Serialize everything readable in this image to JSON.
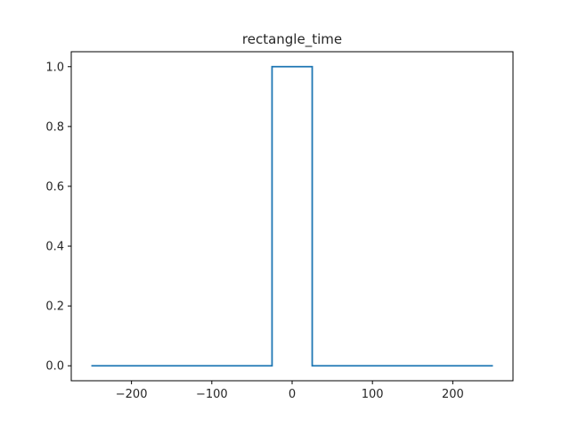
{
  "chart_data": {
    "type": "line",
    "title": "rectangle_time",
    "xlabel": "",
    "ylabel": "",
    "xlim": [
      -275,
      275
    ],
    "ylim": [
      -0.05,
      1.05
    ],
    "x_ticks": [
      {
        "value": -200,
        "label": "−200"
      },
      {
        "value": -100,
        "label": "−100"
      },
      {
        "value": 0,
        "label": "0"
      },
      {
        "value": 100,
        "label": "100"
      },
      {
        "value": 200,
        "label": "200"
      }
    ],
    "y_ticks": [
      {
        "value": 0.0,
        "label": "0.0"
      },
      {
        "value": 0.2,
        "label": "0.2"
      },
      {
        "value": 0.4,
        "label": "0.4"
      },
      {
        "value": 0.6,
        "label": "0.6"
      },
      {
        "value": 0.8,
        "label": "0.8"
      },
      {
        "value": 1.0,
        "label": "1.0"
      }
    ],
    "grid": false,
    "series": [
      {
        "color": "#1f77b4",
        "x": [
          -250,
          -25,
          -25,
          25,
          25,
          250
        ],
        "y": [
          0,
          0,
          1,
          1,
          0,
          0
        ]
      }
    ]
  }
}
